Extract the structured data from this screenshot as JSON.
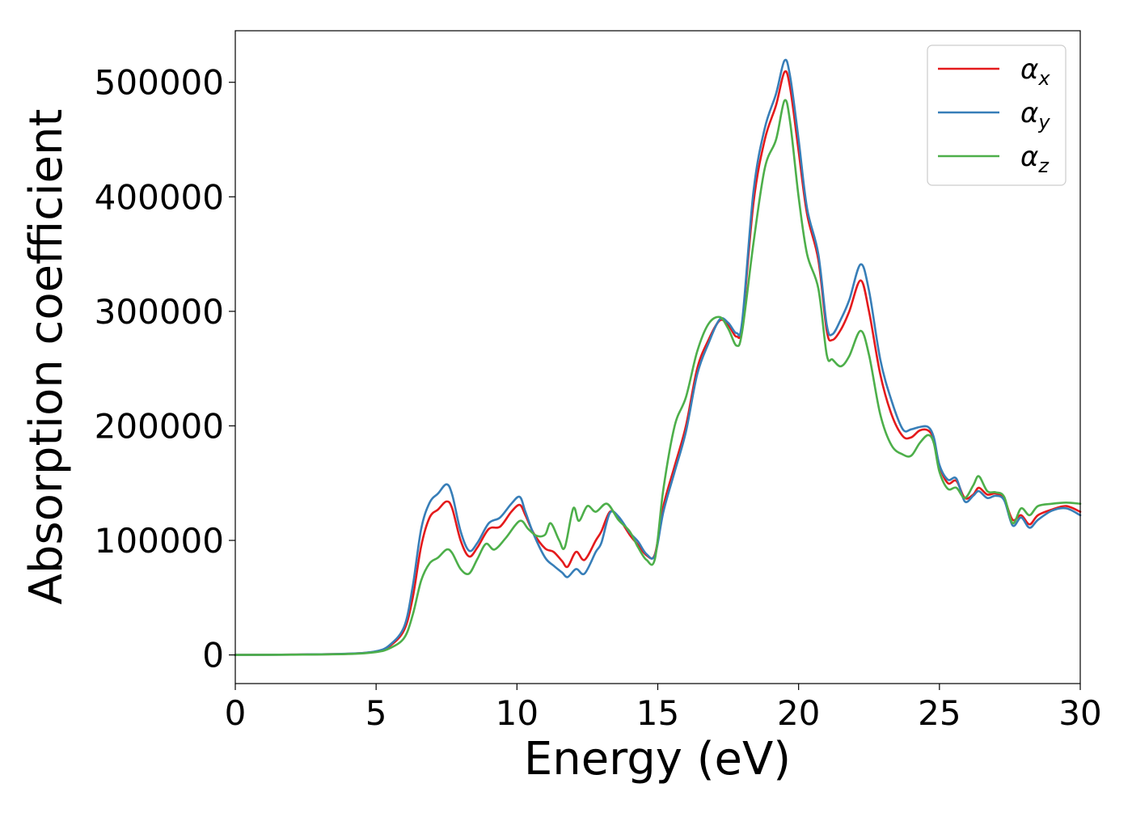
{
  "chart_data": {
    "type": "line",
    "xlabel": "Energy (eV)",
    "ylabel": "Absorption coefficient",
    "xlim": [
      0,
      30
    ],
    "ylim": [
      -25000,
      545000
    ],
    "xticks": [
      0,
      5,
      10,
      15,
      20,
      25,
      30
    ],
    "xtick_labels": [
      "0",
      "5",
      "10",
      "15",
      "20",
      "25",
      "30"
    ],
    "yticks": [
      0,
      100000,
      200000,
      300000,
      400000,
      500000
    ],
    "ytick_labels": [
      "0",
      "100000",
      "200000",
      "300000",
      "400000",
      "500000"
    ],
    "grid": false,
    "legend": {
      "placement": "top-right"
    },
    "series": [
      {
        "name": "α",
        "subscript": "x",
        "color": "#e41a1c",
        "points": [
          [
            0,
            0
          ],
          [
            2,
            300
          ],
          [
            4,
            1000
          ],
          [
            5,
            3000
          ],
          [
            5.5,
            8000
          ],
          [
            6,
            22000
          ],
          [
            6.3,
            50000
          ],
          [
            6.6,
            95000
          ],
          [
            6.9,
            120000
          ],
          [
            7.2,
            127000
          ],
          [
            7.5,
            134000
          ],
          [
            7.7,
            128000
          ],
          [
            8.0,
            100000
          ],
          [
            8.3,
            86000
          ],
          [
            8.6,
            94000
          ],
          [
            9.0,
            110000
          ],
          [
            9.4,
            112000
          ],
          [
            9.8,
            125000
          ],
          [
            10.1,
            131000
          ],
          [
            10.3,
            122000
          ],
          [
            10.6,
            106000
          ],
          [
            11.0,
            93000
          ],
          [
            11.3,
            90000
          ],
          [
            11.6,
            82000
          ],
          [
            11.8,
            77000
          ],
          [
            12.1,
            90000
          ],
          [
            12.4,
            83000
          ],
          [
            12.8,
            100000
          ],
          [
            13.0,
            108000
          ],
          [
            13.3,
            125000
          ],
          [
            13.6,
            120000
          ],
          [
            14.0,
            105000
          ],
          [
            14.3,
            96000
          ],
          [
            14.6,
            87000
          ],
          [
            14.9,
            88000
          ],
          [
            15.2,
            130000
          ],
          [
            15.6,
            165000
          ],
          [
            16.0,
            200000
          ],
          [
            16.4,
            250000
          ],
          [
            16.8,
            275000
          ],
          [
            17.2,
            292000
          ],
          [
            17.5,
            288000
          ],
          [
            17.8,
            278000
          ],
          [
            18.0,
            290000
          ],
          [
            18.4,
            395000
          ],
          [
            18.8,
            450000
          ],
          [
            19.2,
            480000
          ],
          [
            19.5,
            509000
          ],
          [
            19.7,
            495000
          ],
          [
            20.0,
            440000
          ],
          [
            20.3,
            385000
          ],
          [
            20.7,
            345000
          ],
          [
            21.0,
            283000
          ],
          [
            21.2,
            275000
          ],
          [
            21.5,
            284000
          ],
          [
            21.8,
            300000
          ],
          [
            22.2,
            327000
          ],
          [
            22.5,
            300000
          ],
          [
            22.9,
            245000
          ],
          [
            23.3,
            210000
          ],
          [
            23.7,
            191000
          ],
          [
            24.0,
            190000
          ],
          [
            24.3,
            196000
          ],
          [
            24.6,
            196000
          ],
          [
            24.8,
            188000
          ],
          [
            25.0,
            165000
          ],
          [
            25.3,
            150000
          ],
          [
            25.6,
            152000
          ],
          [
            25.9,
            137000
          ],
          [
            26.2,
            140000
          ],
          [
            26.4,
            146000
          ],
          [
            26.7,
            140000
          ],
          [
            27.0,
            141000
          ],
          [
            27.3,
            136000
          ],
          [
            27.6,
            118000
          ],
          [
            27.9,
            122000
          ],
          [
            28.2,
            114000
          ],
          [
            28.5,
            122000
          ],
          [
            29.0,
            127000
          ],
          [
            29.5,
            130000
          ],
          [
            30,
            125000
          ]
        ]
      },
      {
        "name": "α",
        "subscript": "y",
        "color": "#377eb8",
        "points": [
          [
            0,
            0
          ],
          [
            2,
            300
          ],
          [
            4,
            1100
          ],
          [
            5,
            3200
          ],
          [
            5.5,
            9000
          ],
          [
            6,
            25000
          ],
          [
            6.3,
            60000
          ],
          [
            6.6,
            110000
          ],
          [
            6.9,
            133000
          ],
          [
            7.2,
            141000
          ],
          [
            7.5,
            149000
          ],
          [
            7.7,
            140000
          ],
          [
            8.0,
            108000
          ],
          [
            8.3,
            91000
          ],
          [
            8.6,
            98000
          ],
          [
            9.0,
            115000
          ],
          [
            9.4,
            120000
          ],
          [
            9.8,
            132000
          ],
          [
            10.1,
            138000
          ],
          [
            10.3,
            125000
          ],
          [
            10.6,
            105000
          ],
          [
            11.0,
            85000
          ],
          [
            11.3,
            78000
          ],
          [
            11.6,
            72000
          ],
          [
            11.8,
            68000
          ],
          [
            12.1,
            75000
          ],
          [
            12.4,
            71000
          ],
          [
            12.8,
            90000
          ],
          [
            13.0,
            98000
          ],
          [
            13.3,
            124000
          ],
          [
            13.6,
            121000
          ],
          [
            14.0,
            107000
          ],
          [
            14.3,
            99000
          ],
          [
            14.6,
            88000
          ],
          [
            14.9,
            87000
          ],
          [
            15.2,
            125000
          ],
          [
            15.6,
            160000
          ],
          [
            16.0,
            195000
          ],
          [
            16.4,
            245000
          ],
          [
            16.8,
            272000
          ],
          [
            17.2,
            293000
          ],
          [
            17.5,
            290000
          ],
          [
            17.8,
            281000
          ],
          [
            18.0,
            292000
          ],
          [
            18.4,
            405000
          ],
          [
            18.8,
            460000
          ],
          [
            19.2,
            490000
          ],
          [
            19.5,
            519000
          ],
          [
            19.7,
            505000
          ],
          [
            20.0,
            450000
          ],
          [
            20.3,
            390000
          ],
          [
            20.7,
            350000
          ],
          [
            21.0,
            288000
          ],
          [
            21.2,
            280000
          ],
          [
            21.5,
            293000
          ],
          [
            21.8,
            310000
          ],
          [
            22.2,
            341000
          ],
          [
            22.5,
            318000
          ],
          [
            22.9,
            258000
          ],
          [
            23.3,
            222000
          ],
          [
            23.7,
            197000
          ],
          [
            24.0,
            197000
          ],
          [
            24.3,
            199000
          ],
          [
            24.6,
            199000
          ],
          [
            24.8,
            190000
          ],
          [
            25.0,
            166000
          ],
          [
            25.3,
            153000
          ],
          [
            25.6,
            154000
          ],
          [
            25.9,
            134000
          ],
          [
            26.2,
            139000
          ],
          [
            26.4,
            143000
          ],
          [
            26.7,
            137000
          ],
          [
            27.0,
            139000
          ],
          [
            27.3,
            135000
          ],
          [
            27.6,
            113000
          ],
          [
            27.9,
            120000
          ],
          [
            28.2,
            111000
          ],
          [
            28.5,
            118000
          ],
          [
            29.0,
            126000
          ],
          [
            29.5,
            128000
          ],
          [
            30,
            122000
          ]
        ]
      },
      {
        "name": "α",
        "subscript": "z",
        "color": "#4daf4a",
        "points": [
          [
            0,
            0
          ],
          [
            2,
            200
          ],
          [
            4,
            800
          ],
          [
            5,
            2500
          ],
          [
            5.5,
            6000
          ],
          [
            6,
            15000
          ],
          [
            6.3,
            35000
          ],
          [
            6.6,
            65000
          ],
          [
            6.9,
            80000
          ],
          [
            7.2,
            85000
          ],
          [
            7.5,
            92000
          ],
          [
            7.7,
            89000
          ],
          [
            8.0,
            75000
          ],
          [
            8.3,
            71000
          ],
          [
            8.6,
            84000
          ],
          [
            8.9,
            97000
          ],
          [
            9.2,
            92000
          ],
          [
            9.6,
            102000
          ],
          [
            10.1,
            117000
          ],
          [
            10.4,
            110000
          ],
          [
            10.7,
            104000
          ],
          [
            11.0,
            105000
          ],
          [
            11.2,
            115000
          ],
          [
            11.5,
            100000
          ],
          [
            11.7,
            94000
          ],
          [
            12.0,
            128000
          ],
          [
            12.2,
            117000
          ],
          [
            12.5,
            130000
          ],
          [
            12.8,
            125000
          ],
          [
            13.2,
            132000
          ],
          [
            13.6,
            118000
          ],
          [
            14.0,
            108000
          ],
          [
            14.3,
            94000
          ],
          [
            14.6,
            83000
          ],
          [
            14.9,
            84000
          ],
          [
            15.2,
            145000
          ],
          [
            15.6,
            200000
          ],
          [
            16.0,
            225000
          ],
          [
            16.4,
            265000
          ],
          [
            16.8,
            289000
          ],
          [
            17.2,
            295000
          ],
          [
            17.5,
            285000
          ],
          [
            17.8,
            270000
          ],
          [
            18.0,
            283000
          ],
          [
            18.4,
            360000
          ],
          [
            18.8,
            425000
          ],
          [
            19.2,
            450000
          ],
          [
            19.5,
            484000
          ],
          [
            19.7,
            465000
          ],
          [
            20.0,
            400000
          ],
          [
            20.3,
            350000
          ],
          [
            20.7,
            320000
          ],
          [
            21.0,
            262000
          ],
          [
            21.2,
            258000
          ],
          [
            21.5,
            252000
          ],
          [
            21.8,
            261000
          ],
          [
            22.2,
            283000
          ],
          [
            22.5,
            262000
          ],
          [
            22.9,
            210000
          ],
          [
            23.3,
            183000
          ],
          [
            23.7,
            175000
          ],
          [
            24.0,
            174000
          ],
          [
            24.3,
            185000
          ],
          [
            24.6,
            192000
          ],
          [
            24.8,
            185000
          ],
          [
            25.0,
            160000
          ],
          [
            25.3,
            145000
          ],
          [
            25.6,
            146000
          ],
          [
            25.9,
            137000
          ],
          [
            26.2,
            148000
          ],
          [
            26.4,
            156000
          ],
          [
            26.7,
            143000
          ],
          [
            27.0,
            142000
          ],
          [
            27.3,
            138000
          ],
          [
            27.6,
            115000
          ],
          [
            27.9,
            128000
          ],
          [
            28.2,
            122000
          ],
          [
            28.5,
            130000
          ],
          [
            29.0,
            132000
          ],
          [
            29.5,
            133000
          ],
          [
            30,
            132000
          ]
        ]
      }
    ]
  }
}
